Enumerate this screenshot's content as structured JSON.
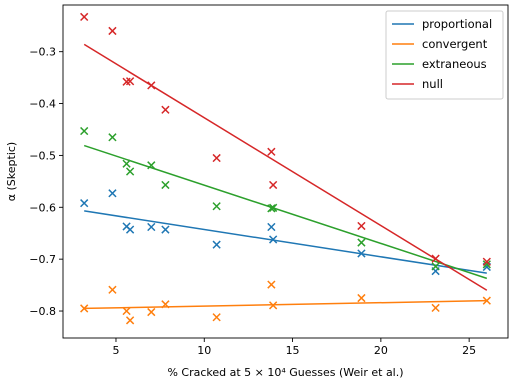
{
  "chart_data": {
    "type": "scatter",
    "title": "",
    "xlabel": "% Cracked at 5 × 10⁴ Guesses (Weir et al.)",
    "ylabel": "α (Skeptic)",
    "xlim": [
      2.0,
      27.2
    ],
    "ylim": [
      -0.852,
      -0.21
    ],
    "xticks": [
      5,
      10,
      15,
      20,
      25
    ],
    "xtick_labels": [
      "5",
      "10",
      "15",
      "20",
      "25"
    ],
    "yticks": [
      -0.3,
      -0.4,
      -0.5,
      -0.6,
      -0.7,
      -0.8
    ],
    "ytick_labels": [
      "−0.3",
      "−0.4",
      "−0.5",
      "−0.6",
      "−0.7",
      "−0.8"
    ],
    "grid": false,
    "legend_position": "top-right",
    "series": [
      {
        "name": "proportional",
        "color": "#1f77b4",
        "fit": [
          [
            3.2,
            -0.607
          ],
          [
            26.0,
            -0.727
          ]
        ],
        "points": [
          [
            3.2,
            -0.592
          ],
          [
            4.8,
            -0.573
          ],
          [
            5.6,
            -0.637
          ],
          [
            5.8,
            -0.643
          ],
          [
            7.0,
            -0.638
          ],
          [
            7.8,
            -0.643
          ],
          [
            10.7,
            -0.672
          ],
          [
            13.8,
            -0.638
          ],
          [
            13.9,
            -0.662
          ],
          [
            18.9,
            -0.689
          ],
          [
            23.1,
            -0.723
          ],
          [
            26.0,
            -0.715
          ]
        ]
      },
      {
        "name": "convergent",
        "color": "#ff7f0e",
        "fit": [
          [
            3.2,
            -0.795
          ],
          [
            26.0,
            -0.78
          ]
        ],
        "points": [
          [
            3.2,
            -0.795
          ],
          [
            4.8,
            -0.759
          ],
          [
            5.6,
            -0.8
          ],
          [
            5.8,
            -0.818
          ],
          [
            7.0,
            -0.802
          ],
          [
            7.8,
            -0.787
          ],
          [
            10.7,
            -0.812
          ],
          [
            13.8,
            -0.749
          ],
          [
            13.9,
            -0.789
          ],
          [
            18.9,
            -0.775
          ],
          [
            23.1,
            -0.794
          ],
          [
            26.0,
            -0.78
          ]
        ]
      },
      {
        "name": "extraneous",
        "color": "#2ca02c",
        "fit": [
          [
            3.2,
            -0.481
          ],
          [
            26.0,
            -0.737
          ]
        ],
        "points": [
          [
            3.2,
            -0.453
          ],
          [
            4.8,
            -0.465
          ],
          [
            5.6,
            -0.516
          ],
          [
            5.8,
            -0.531
          ],
          [
            7.0,
            -0.519
          ],
          [
            7.8,
            -0.557
          ],
          [
            10.7,
            -0.598
          ],
          [
            13.8,
            -0.602
          ],
          [
            13.9,
            -0.601
          ],
          [
            18.9,
            -0.668
          ],
          [
            23.1,
            -0.714
          ],
          [
            26.0,
            -0.71
          ]
        ]
      },
      {
        "name": "null",
        "color": "#d62728",
        "fit": [
          [
            3.2,
            -0.286
          ],
          [
            26.0,
            -0.76
          ]
        ],
        "points": [
          [
            3.2,
            -0.233
          ],
          [
            4.8,
            -0.26
          ],
          [
            5.6,
            -0.358
          ],
          [
            5.8,
            -0.357
          ],
          [
            7.0,
            -0.365
          ],
          [
            7.8,
            -0.412
          ],
          [
            10.7,
            -0.505
          ],
          [
            13.8,
            -0.493
          ],
          [
            13.9,
            -0.557
          ],
          [
            18.9,
            -0.636
          ],
          [
            23.1,
            -0.699
          ],
          [
            26.0,
            -0.705
          ]
        ]
      }
    ]
  }
}
